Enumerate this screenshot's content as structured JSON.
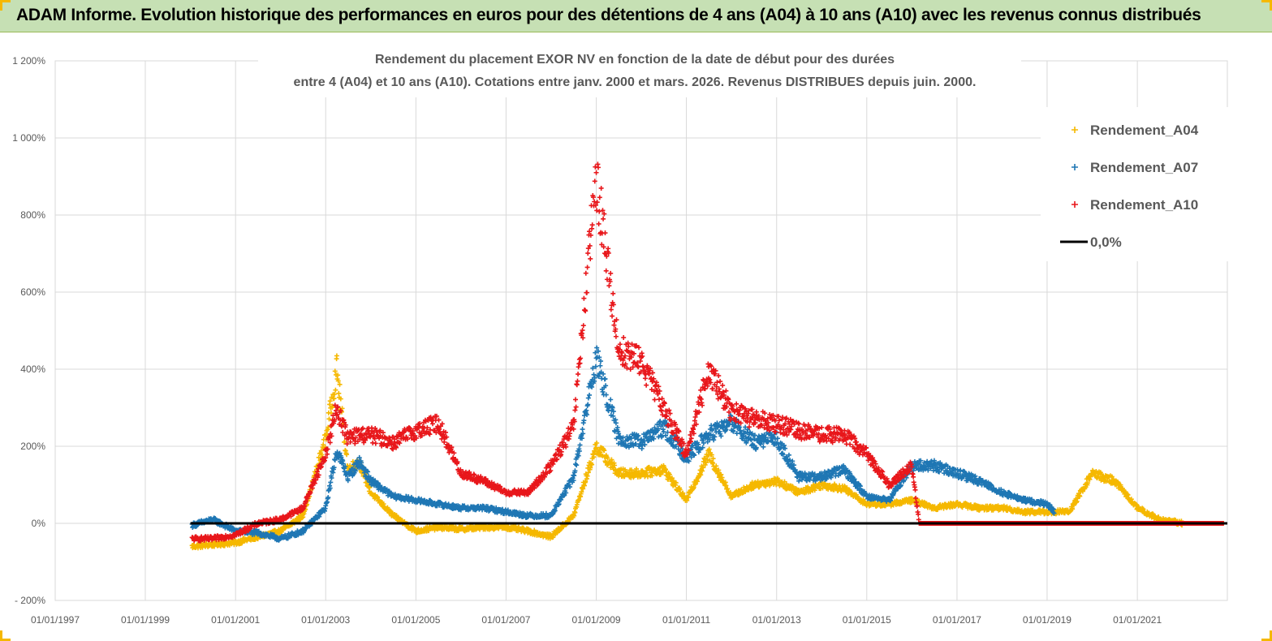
{
  "banner": {
    "title": "ADAM Informe. Evolution historique des performances en euros pour des détentions de 4 ans (A04) à 10 ans (A10) avec les revenus connus distribués"
  },
  "colors": {
    "banner_bg": "#c6e0b4",
    "a04": "#f5b800",
    "a07": "#1f77b4",
    "a10": "#e8171b",
    "zero_line": "#000000",
    "corner_accent": "#f5b800"
  },
  "chart_data": {
    "type": "scatter",
    "title": "",
    "subtitle": [
      "Rendement du placement EXOR NV en fonction de la date de début pour des durées",
      "entre 4 (A04) et 10 ans (A10).  Cotations entre janv. 2000 et mars. 2026. Revenus DISTRIBUES depuis juin. 2000."
    ],
    "xlabel": "",
    "ylabel": "",
    "xlim": [
      "1997-01-01",
      "2022-12-31"
    ],
    "ylim": [
      -200,
      1200
    ],
    "x_ticks": [
      "01/01/1997",
      "01/01/1999",
      "01/01/2001",
      "01/01/2003",
      "01/01/2005",
      "01/01/2007",
      "01/01/2009",
      "01/01/2011",
      "01/01/2013",
      "01/01/2015",
      "01/01/2017",
      "01/01/2019",
      "01/01/2021"
    ],
    "y_ticks": [
      "- 200%",
      "0%",
      "200%",
      "400%",
      "600%",
      "800%",
      "1 000%",
      "1 200%"
    ],
    "grid": true,
    "legend_position": "top-right",
    "legend": [
      "Rendement_A04",
      "Rendement_A07",
      "Rendement_A10",
      "0,0%"
    ],
    "series": [
      {
        "name": "Rendement_A04",
        "marker": "plus",
        "points": [
          [
            "2000-01-15",
            -60
          ],
          [
            "2000-07-01",
            -55
          ],
          [
            "2001-01-01",
            -50
          ],
          [
            "2001-07-01",
            -35
          ],
          [
            "2002-01-01",
            -20
          ],
          [
            "2002-07-01",
            20
          ],
          [
            "2003-01-01",
            220
          ],
          [
            "2003-04-01",
            400
          ],
          [
            "2003-07-01",
            140
          ],
          [
            "2003-10-01",
            160
          ],
          [
            "2004-01-01",
            80
          ],
          [
            "2004-07-01",
            20
          ],
          [
            "2005-01-01",
            -20
          ],
          [
            "2005-07-01",
            -10
          ],
          [
            "2006-01-01",
            -15
          ],
          [
            "2006-07-01",
            -10
          ],
          [
            "2007-01-01",
            -10
          ],
          [
            "2007-07-01",
            -20
          ],
          [
            "2008-01-01",
            -35
          ],
          [
            "2008-07-01",
            20
          ],
          [
            "2009-01-01",
            200
          ],
          [
            "2009-07-01",
            130
          ],
          [
            "2010-01-01",
            130
          ],
          [
            "2010-07-01",
            140
          ],
          [
            "2011-01-01",
            60
          ],
          [
            "2011-07-01",
            180
          ],
          [
            "2012-01-01",
            70
          ],
          [
            "2012-07-01",
            100
          ],
          [
            "2013-01-01",
            110
          ],
          [
            "2013-07-01",
            80
          ],
          [
            "2014-01-01",
            100
          ],
          [
            "2014-07-01",
            90
          ],
          [
            "2015-01-01",
            50
          ],
          [
            "2015-07-01",
            50
          ],
          [
            "2016-01-01",
            60
          ],
          [
            "2016-07-01",
            40
          ],
          [
            "2017-01-01",
            50
          ],
          [
            "2017-07-01",
            40
          ],
          [
            "2018-01-01",
            40
          ],
          [
            "2018-07-01",
            30
          ],
          [
            "2019-01-01",
            30
          ],
          [
            "2019-07-01",
            30
          ],
          [
            "2020-01-01",
            130
          ],
          [
            "2020-07-01",
            110
          ],
          [
            "2021-01-01",
            40
          ],
          [
            "2021-07-01",
            10
          ],
          [
            "2022-01-01",
            0
          ],
          [
            "2022-12-01",
            0
          ]
        ]
      },
      {
        "name": "Rendement_A07",
        "marker": "plus",
        "points": [
          [
            "2000-01-15",
            -5
          ],
          [
            "2000-07-01",
            10
          ],
          [
            "2001-01-01",
            -20
          ],
          [
            "2001-07-01",
            -25
          ],
          [
            "2002-01-01",
            -40
          ],
          [
            "2002-07-01",
            -20
          ],
          [
            "2003-01-01",
            40
          ],
          [
            "2003-04-01",
            190
          ],
          [
            "2003-07-01",
            120
          ],
          [
            "2003-10-01",
            160
          ],
          [
            "2004-01-01",
            110
          ],
          [
            "2004-07-01",
            70
          ],
          [
            "2005-01-01",
            60
          ],
          [
            "2005-07-01",
            50
          ],
          [
            "2006-01-01",
            40
          ],
          [
            "2006-07-01",
            40
          ],
          [
            "2007-01-01",
            30
          ],
          [
            "2007-07-01",
            20
          ],
          [
            "2008-01-01",
            20
          ],
          [
            "2008-07-01",
            120
          ],
          [
            "2009-01-01",
            430
          ],
          [
            "2009-07-01",
            220
          ],
          [
            "2010-01-01",
            210
          ],
          [
            "2010-07-01",
            250
          ],
          [
            "2011-01-01",
            170
          ],
          [
            "2011-07-01",
            230
          ],
          [
            "2012-01-01",
            260
          ],
          [
            "2012-07-01",
            210
          ],
          [
            "2013-01-01",
            220
          ],
          [
            "2013-07-01",
            120
          ],
          [
            "2014-01-01",
            120
          ],
          [
            "2014-07-01",
            140
          ],
          [
            "2015-01-01",
            70
          ],
          [
            "2015-07-01",
            60
          ],
          [
            "2016-01-01",
            150
          ],
          [
            "2016-07-01",
            150
          ],
          [
            "2017-01-01",
            130
          ],
          [
            "2017-07-01",
            110
          ],
          [
            "2018-01-01",
            80
          ],
          [
            "2018-07-01",
            60
          ],
          [
            "2019-01-01",
            50
          ],
          [
            "2019-03-01",
            30
          ]
        ]
      },
      {
        "name": "Rendement_A10",
        "marker": "plus",
        "points": [
          [
            "2000-01-15",
            -40
          ],
          [
            "2000-07-01",
            -40
          ],
          [
            "2001-01-01",
            -30
          ],
          [
            "2001-07-01",
            0
          ],
          [
            "2002-01-01",
            10
          ],
          [
            "2002-07-01",
            40
          ],
          [
            "2003-01-01",
            180
          ],
          [
            "2003-04-01",
            300
          ],
          [
            "2003-07-01",
            220
          ],
          [
            "2003-10-01",
            230
          ],
          [
            "2004-01-01",
            230
          ],
          [
            "2004-07-01",
            210
          ],
          [
            "2005-01-01",
            240
          ],
          [
            "2005-07-01",
            260
          ],
          [
            "2006-01-01",
            130
          ],
          [
            "2006-07-01",
            110
          ],
          [
            "2007-01-01",
            80
          ],
          [
            "2007-07-01",
            80
          ],
          [
            "2008-01-01",
            150
          ],
          [
            "2008-07-01",
            250
          ],
          [
            "2009-01-01",
            900
          ],
          [
            "2009-07-01",
            450
          ],
          [
            "2010-01-01",
            420
          ],
          [
            "2010-07-01",
            300
          ],
          [
            "2011-01-01",
            180
          ],
          [
            "2011-07-01",
            400
          ],
          [
            "2012-01-01",
            290
          ],
          [
            "2012-07-01",
            270
          ],
          [
            "2013-01-01",
            260
          ],
          [
            "2013-07-01",
            240
          ],
          [
            "2014-01-01",
            230
          ],
          [
            "2014-07-01",
            230
          ],
          [
            "2015-01-01",
            180
          ],
          [
            "2015-07-01",
            100
          ],
          [
            "2016-01-01",
            150
          ],
          [
            "2016-03-01",
            0
          ],
          [
            "2017-01-01",
            0
          ],
          [
            "2018-01-01",
            0
          ],
          [
            "2019-01-01",
            0
          ],
          [
            "2020-01-01",
            0
          ],
          [
            "2021-01-01",
            0
          ],
          [
            "2022-12-01",
            0
          ]
        ]
      },
      {
        "name": "0,0%",
        "marker": "line",
        "points": [
          [
            "2000-01-01",
            0
          ],
          [
            "2022-12-31",
            0
          ]
        ]
      }
    ]
  }
}
